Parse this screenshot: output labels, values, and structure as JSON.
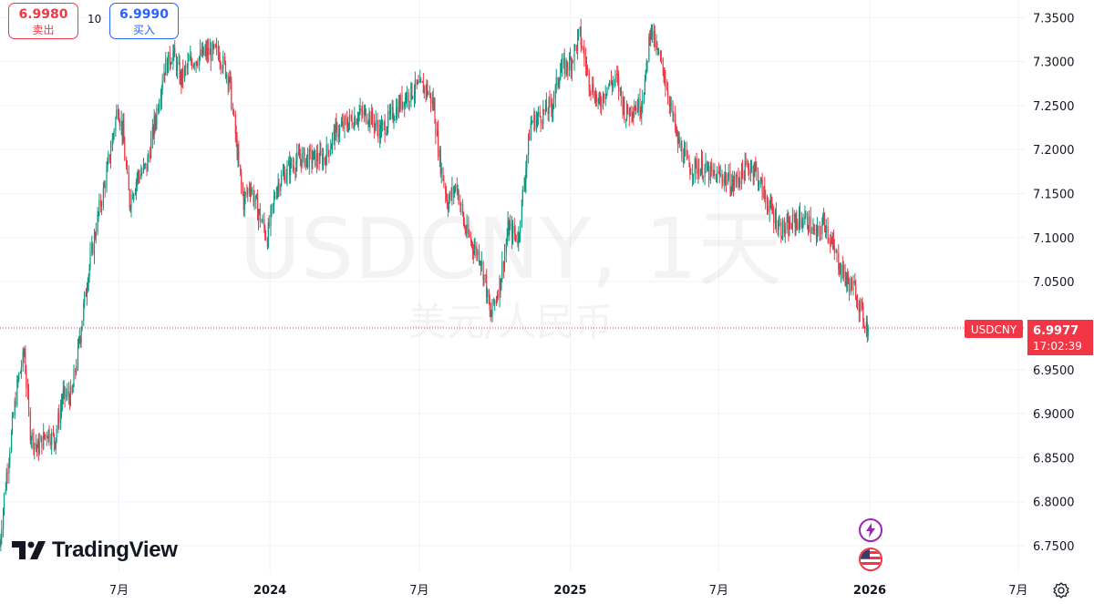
{
  "trade": {
    "sell_price": "6.9980",
    "sell_label": "卖出",
    "spread": "10",
    "buy_price": "6.9990",
    "buy_label": "买入"
  },
  "watermark": {
    "symbol": "USDCNY, 1天",
    "description": "美元/人民币"
  },
  "brand": {
    "name": "TradingView"
  },
  "last_price": {
    "symbol": "USDCNY",
    "price": "6.9977",
    "countdown": "17:02:39"
  },
  "colors": {
    "up": "#089981",
    "down": "#f23645",
    "grid": "#f0f3fa",
    "label_bg": "#f23645"
  },
  "icons": [
    "flash-icon",
    "us-flag-icon",
    "settings-icon"
  ],
  "chart_data": {
    "type": "candlestick",
    "symbol": "USDCNY",
    "interval": "1天",
    "ylim": [
      6.72,
      7.37
    ],
    "y_ticks": [
      "7.3500",
      "7.3000",
      "7.2500",
      "7.2000",
      "7.1500",
      "7.1000",
      "7.0500",
      "6.9500",
      "6.9000",
      "6.8500",
      "6.8000",
      "6.7500"
    ],
    "x_ticks": [
      {
        "label": "7月",
        "date": "2023-07-01"
      },
      {
        "label": "2024",
        "date": "2024-01-01"
      },
      {
        "label": "7月",
        "date": "2024-07-01"
      },
      {
        "label": "2025",
        "date": "2025-01-01"
      },
      {
        "label": "7月",
        "date": "2025-07-01"
      },
      {
        "label": "2026",
        "date": "2026-01-01"
      },
      {
        "label": "7月",
        "date": "2026-07-01"
      }
    ],
    "x_range": [
      "2023-02-06",
      "2026-07-10"
    ],
    "close_path": [
      [
        "2023-02-06",
        6.75
      ],
      [
        "2023-02-13",
        6.82
      ],
      [
        "2023-02-27",
        6.93
      ],
      [
        "2023-03-08",
        6.97
      ],
      [
        "2023-03-15",
        6.88
      ],
      [
        "2023-03-24",
        6.86
      ],
      [
        "2023-04-05",
        6.88
      ],
      [
        "2023-04-14",
        6.87
      ],
      [
        "2023-04-24",
        6.92
      ],
      [
        "2023-05-05",
        6.92
      ],
      [
        "2023-05-15",
        6.99
      ],
      [
        "2023-05-25",
        7.06
      ],
      [
        "2023-06-05",
        7.12
      ],
      [
        "2023-06-16",
        7.17
      ],
      [
        "2023-06-30",
        7.25
      ],
      [
        "2023-07-06",
        7.22
      ],
      [
        "2023-07-14",
        7.14
      ],
      [
        "2023-07-24",
        7.17
      ],
      [
        "2023-08-04",
        7.18
      ],
      [
        "2023-08-14",
        7.23
      ],
      [
        "2023-08-25",
        7.29
      ],
      [
        "2023-09-05",
        7.31
      ],
      [
        "2023-09-15",
        7.28
      ],
      [
        "2023-09-26",
        7.3
      ],
      [
        "2023-10-16",
        7.31
      ],
      [
        "2023-10-31",
        7.31
      ],
      [
        "2023-11-13",
        7.28
      ],
      [
        "2023-11-22",
        7.2
      ],
      [
        "2023-11-30",
        7.14
      ],
      [
        "2023-12-08",
        7.16
      ],
      [
        "2023-12-18",
        7.13
      ],
      [
        "2023-12-29",
        7.1
      ],
      [
        "2024-01-10",
        7.16
      ],
      [
        "2024-01-25",
        7.18
      ],
      [
        "2024-02-07",
        7.19
      ],
      [
        "2024-02-23",
        7.19
      ],
      [
        "2024-03-08",
        7.19
      ],
      [
        "2024-03-21",
        7.22
      ],
      [
        "2024-04-05",
        7.23
      ],
      [
        "2024-04-18",
        7.24
      ],
      [
        "2024-04-30",
        7.24
      ],
      [
        "2024-05-15",
        7.22
      ],
      [
        "2024-05-30",
        7.24
      ],
      [
        "2024-06-14",
        7.26
      ],
      [
        "2024-06-28",
        7.27
      ],
      [
        "2024-07-10",
        7.27
      ],
      [
        "2024-07-19",
        7.25
      ],
      [
        "2024-07-26",
        7.19
      ],
      [
        "2024-08-05",
        7.14
      ],
      [
        "2024-08-16",
        7.16
      ],
      [
        "2024-08-26",
        7.11
      ],
      [
        "2024-09-05",
        7.09
      ],
      [
        "2024-09-13",
        7.08
      ],
      [
        "2024-09-20",
        7.05
      ],
      [
        "2024-09-26",
        7.01
      ],
      [
        "2024-10-08",
        7.05
      ],
      [
        "2024-10-18",
        7.11
      ],
      [
        "2024-10-30",
        7.1
      ],
      [
        "2024-11-07",
        7.17
      ],
      [
        "2024-11-14",
        7.23
      ],
      [
        "2024-11-28",
        7.24
      ],
      [
        "2024-12-10",
        7.25
      ],
      [
        "2024-12-20",
        7.29
      ],
      [
        "2025-01-02",
        7.3
      ],
      [
        "2025-01-13",
        7.33
      ],
      [
        "2025-01-24",
        7.28
      ],
      [
        "2025-02-06",
        7.25
      ],
      [
        "2025-02-13",
        7.27
      ],
      [
        "2025-02-27",
        7.28
      ],
      [
        "2025-03-10",
        7.24
      ],
      [
        "2025-03-20",
        7.25
      ],
      [
        "2025-03-28",
        7.25
      ],
      [
        "2025-04-03",
        7.28
      ],
      [
        "2025-04-09",
        7.34
      ],
      [
        "2025-04-17",
        7.31
      ],
      [
        "2025-04-25",
        7.29
      ],
      [
        "2025-05-12",
        7.21
      ],
      [
        "2025-05-26",
        7.18
      ],
      [
        "2025-06-10",
        7.18
      ],
      [
        "2025-06-24",
        7.17
      ],
      [
        "2025-07-08",
        7.17
      ],
      [
        "2025-07-18",
        7.16
      ],
      [
        "2025-08-05",
        7.18
      ],
      [
        "2025-08-14",
        7.18
      ],
      [
        "2025-08-25",
        7.15
      ],
      [
        "2025-09-04",
        7.13
      ],
      [
        "2025-09-15",
        7.11
      ],
      [
        "2025-09-24",
        7.11
      ],
      [
        "2025-10-03",
        7.12
      ],
      [
        "2025-10-17",
        7.12
      ],
      [
        "2025-10-28",
        7.1
      ],
      [
        "2025-11-07",
        7.12
      ],
      [
        "2025-11-17",
        7.09
      ],
      [
        "2025-11-25",
        7.07
      ],
      [
        "2025-12-05",
        7.05
      ],
      [
        "2025-12-15",
        7.04
      ],
      [
        "2025-12-24",
        7.01
      ],
      [
        "2025-12-30",
        6.9977
      ]
    ]
  }
}
